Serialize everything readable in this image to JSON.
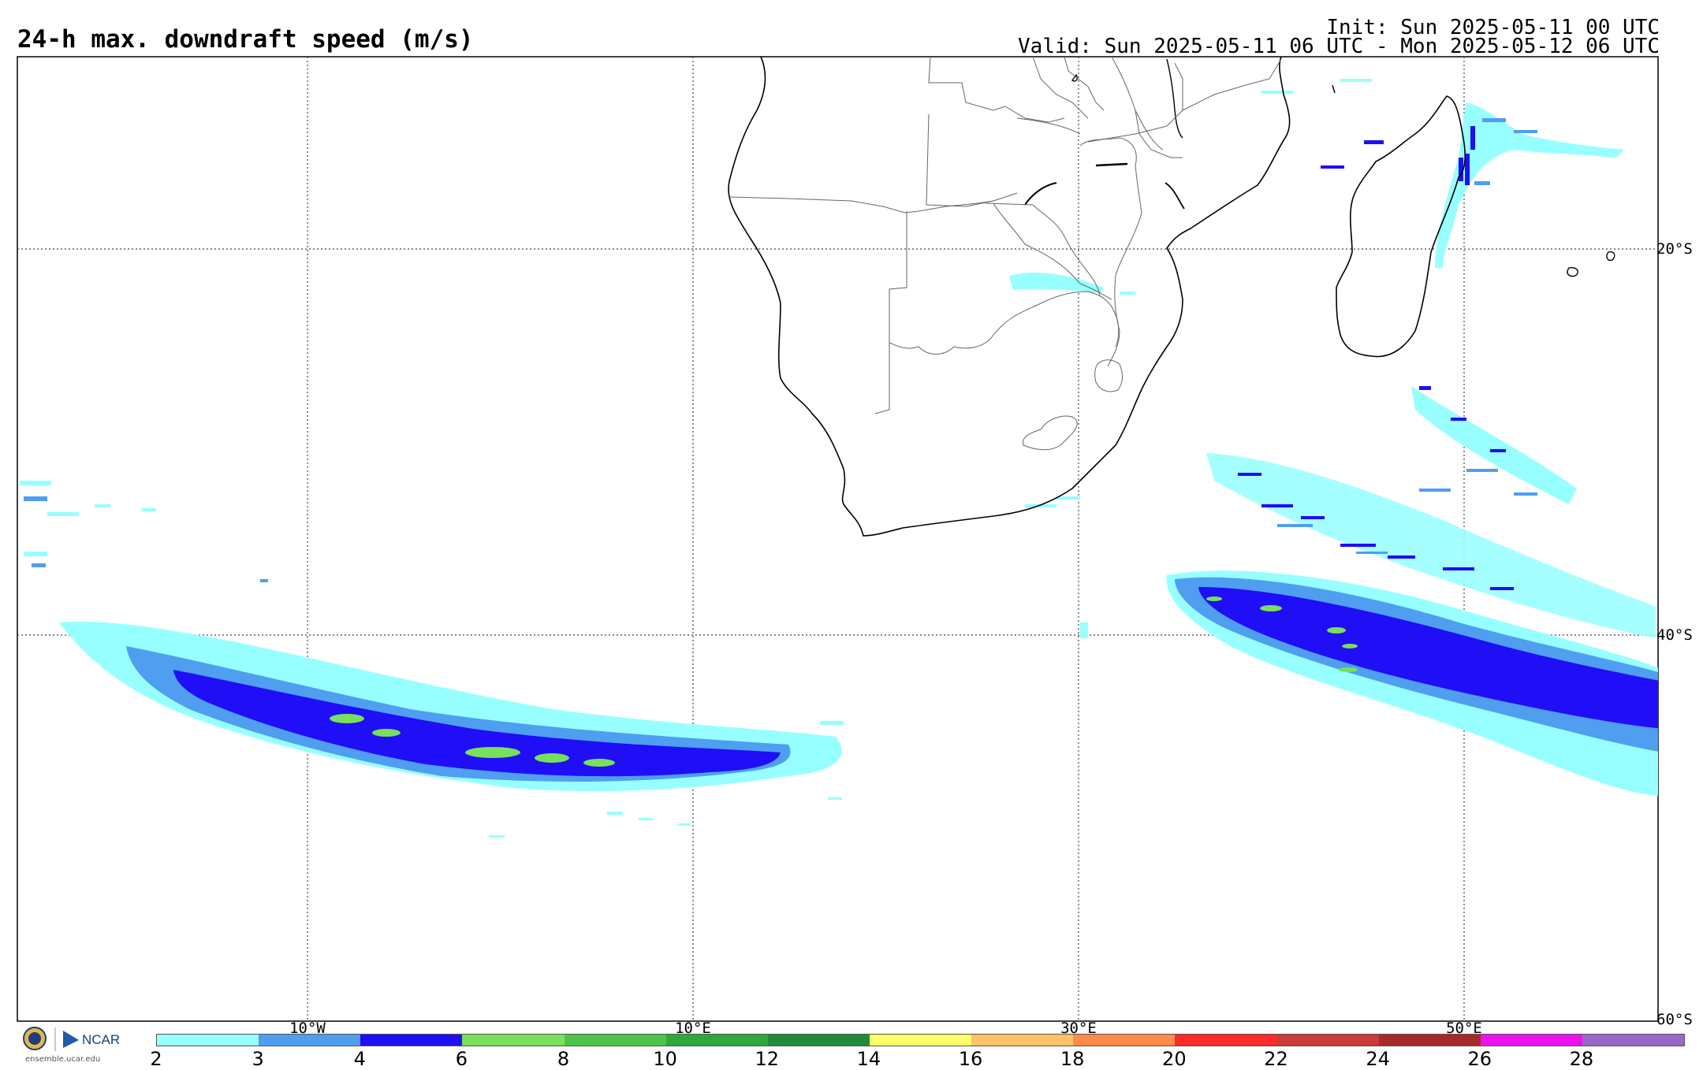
{
  "header": {
    "title": "24-h max. downdraft speed (m/s)",
    "init": "Init: Sun 2025-05-11 00 UTC",
    "valid": "Valid: Sun 2025-05-11 06 UTC - Mon 2025-05-12 06 UTC"
  },
  "map": {
    "lon_labels": [
      "10°W",
      "10°E",
      "30°E",
      "50°E"
    ],
    "lat_labels": [
      "20°S",
      "40°S",
      "60°S"
    ]
  },
  "colorbar": {
    "ticks": [
      "2",
      "4",
      "6",
      "8",
      "10",
      "12",
      "14",
      "16",
      "18",
      "20",
      "22",
      "24",
      "26",
      "28"
    ],
    "colors": [
      "#97ffff",
      "#4f9ef0",
      "#1f0ef6",
      "#78e05a",
      "#4ec44a",
      "#2ea83a",
      "#1f8a3a",
      "#ffff66",
      "#ffc266",
      "#ff8a4a",
      "#ff2a2a",
      "#cc3a3a",
      "#a62a2a",
      "#ee11ee",
      "#9966cc"
    ],
    "extra_tick_3": "3"
  },
  "logo": {
    "org": "NCAR",
    "url": "ensemble.ucar.edu"
  }
}
